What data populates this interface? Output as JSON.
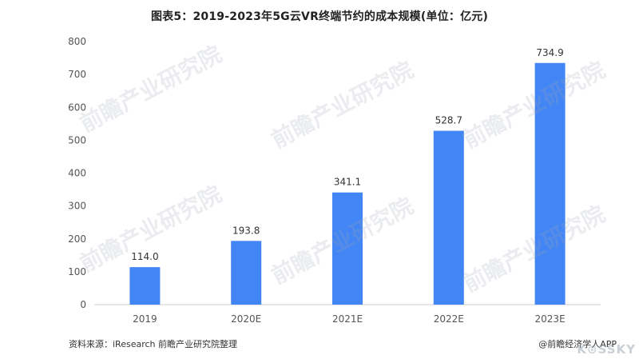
{
  "chart_data": {
    "type": "bar",
    "title": "图表5：2019-2023年5G云VR终端节约的成本规模(单位：亿元)",
    "categories": [
      "2019",
      "2020E",
      "2021E",
      "2022E",
      "2023E"
    ],
    "values": [
      114.0,
      193.8,
      341.1,
      528.7,
      734.9
    ],
    "value_labels": [
      "114.0",
      "193.8",
      "341.1",
      "528.7",
      "734.9"
    ],
    "ylim": [
      0,
      800
    ],
    "yticks": [
      "0",
      "100",
      "200",
      "300",
      "400",
      "500",
      "600",
      "700",
      "800"
    ],
    "grid": false,
    "legend": "none",
    "xlabel": "",
    "ylabel": ""
  },
  "colors": {
    "bar": "#4285f4",
    "axis": "#cccccc",
    "tick_text": "#555555",
    "label_text": "#333333"
  },
  "footer": {
    "source": "资料来源：iResearch 前瞻产业研究院整理",
    "credit": "@前瞻经济学人APP"
  },
  "watermark": {
    "text": "前瞻产业研究院",
    "corner": "K⊙SSKY"
  }
}
